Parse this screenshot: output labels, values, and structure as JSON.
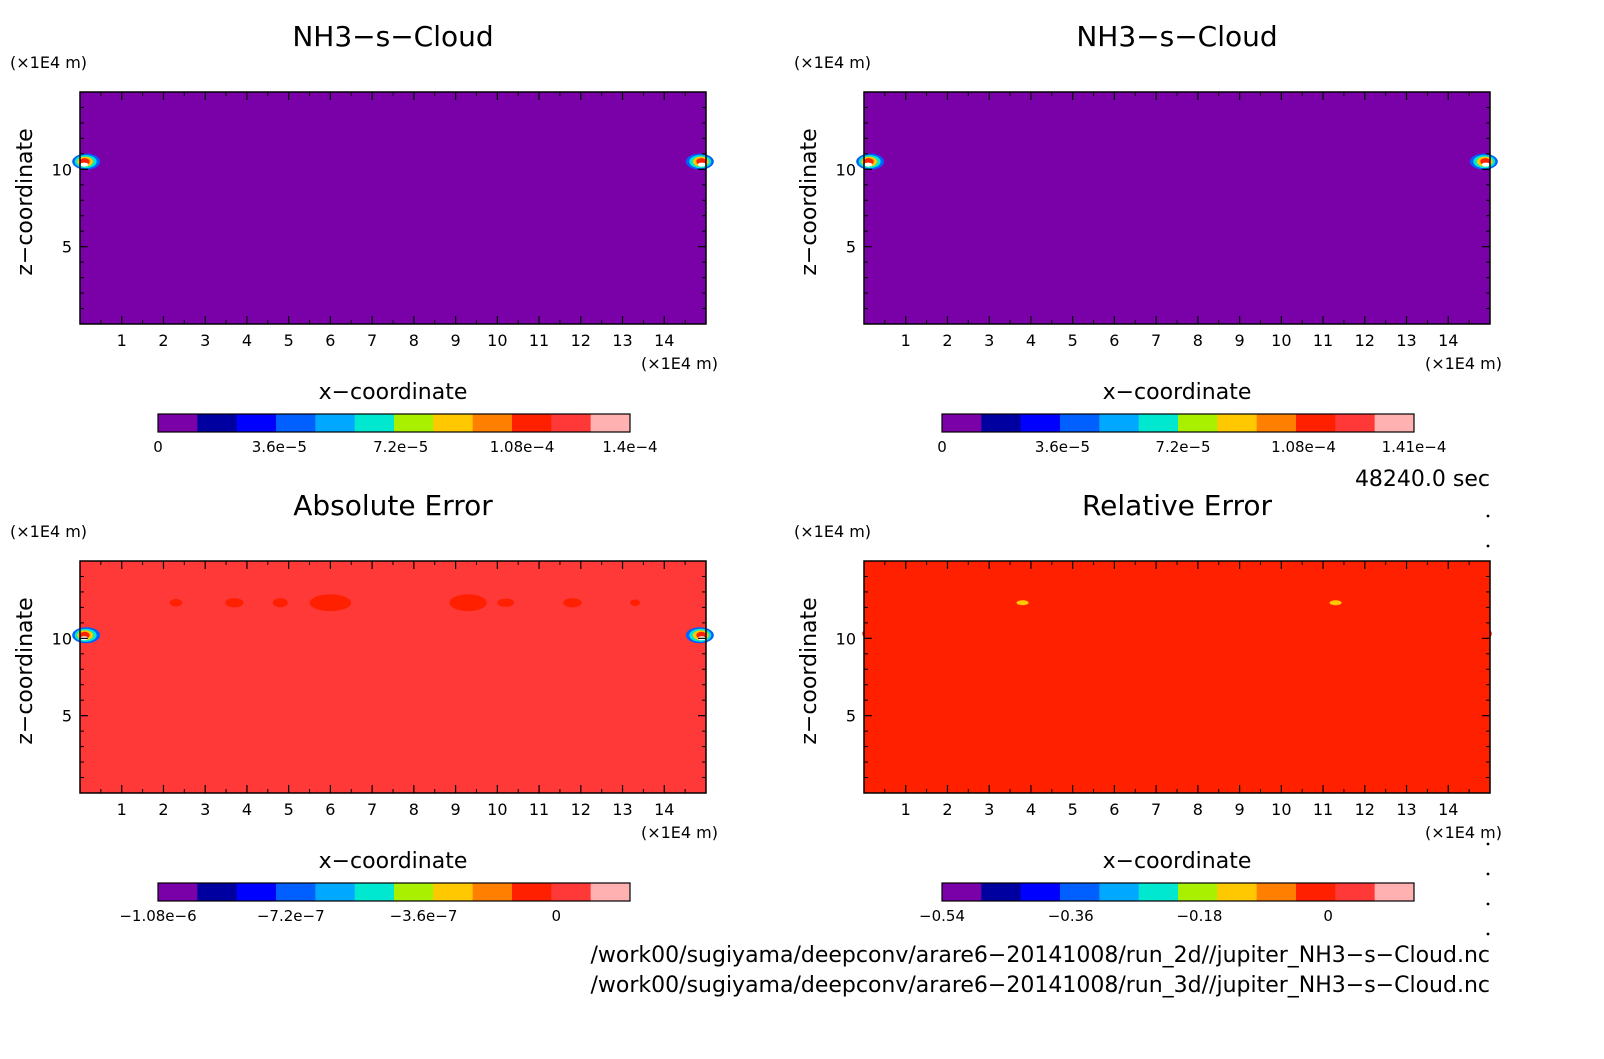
{
  "time_label": "48240.0 sec",
  "files": [
    "/work00/sugiyama/deepconv/arare6-20141008/run_2d//jupiter_NH3-s-Cloud.nc",
    "/work00/sugiyama/deepconv/arare6-20141008/run_3d//jupiter_NH3-s-Cloud.nc"
  ],
  "colors": {
    "palette": [
      "#7a00a8",
      "#0000a0",
      "#0000ff",
      "#0060ff",
      "#00a8ff",
      "#00e8d0",
      "#a8f000",
      "#ffc800",
      "#ff8000",
      "#ff2000",
      "#ff3838",
      "#ffb0b0"
    ]
  },
  "chart_data": [
    {
      "type": "heatmap",
      "title": "NH3-s-Cloud",
      "xlabel": "x-coordinate",
      "ylabel": "z-coordinate",
      "x_unit": "(x1E4 m)",
      "y_unit": "(x1E4 m)",
      "xlim": [
        0,
        15
      ],
      "ylim": [
        0,
        15
      ],
      "xticks": [
        1,
        2,
        3,
        4,
        5,
        6,
        7,
        8,
        9,
        10,
        11,
        12,
        13,
        14
      ],
      "yticks": [
        5,
        10
      ],
      "background_level": 0,
      "colorbar": {
        "min": 0,
        "max": 0.00014,
        "tick_values": [
          0,
          3.6e-05,
          7.2e-05,
          0.000108,
          0.00014
        ],
        "tick_labels": [
          "0",
          "3.6e-5",
          "7.2e-5",
          "1.08e-4",
          "1.4e-4"
        ]
      },
      "features": [
        {
          "kind": "cloud-blob",
          "x": 0.1,
          "z": 10.5
        },
        {
          "kind": "cloud-blob",
          "x": 14.9,
          "z": 10.5
        }
      ]
    },
    {
      "type": "heatmap",
      "title": "NH3-s-Cloud",
      "xlabel": "x-coordinate",
      "ylabel": "z-coordinate",
      "x_unit": "(x1E4 m)",
      "y_unit": "(x1E4 m)",
      "xlim": [
        0,
        15
      ],
      "ylim": [
        0,
        15
      ],
      "xticks": [
        1,
        2,
        3,
        4,
        5,
        6,
        7,
        8,
        9,
        10,
        11,
        12,
        13,
        14
      ],
      "yticks": [
        5,
        10
      ],
      "background_level": 0,
      "colorbar": {
        "min": 0,
        "max": 0.000141,
        "tick_values": [
          0,
          3.6e-05,
          7.2e-05,
          0.000108,
          0.000141
        ],
        "tick_labels": [
          "0",
          "3.6e-5",
          "7.2e-5",
          "1.08e-4",
          "1.41e-4"
        ]
      },
      "features": [
        {
          "kind": "cloud-blob",
          "x": 0.1,
          "z": 10.5
        },
        {
          "kind": "cloud-blob",
          "x": 14.9,
          "z": 10.5
        }
      ]
    },
    {
      "type": "heatmap",
      "title": "Absolute Error",
      "xlabel": "x-coordinate",
      "ylabel": "z-coordinate",
      "x_unit": "(x1E4 m)",
      "y_unit": "(x1E4 m)",
      "xlim": [
        0,
        15
      ],
      "ylim": [
        0,
        15
      ],
      "xticks": [
        1,
        2,
        3,
        4,
        5,
        6,
        7,
        8,
        9,
        10,
        11,
        12,
        13,
        14
      ],
      "yticks": [
        5,
        10
      ],
      "background_level": 0,
      "colorbar": {
        "min": -1.08e-06,
        "max": 2e-07,
        "tick_values": [
          -1.08e-06,
          -7.2e-07,
          -3.6e-07,
          0
        ],
        "tick_labels": [
          "-1.08e-6",
          "-7.2e-7",
          "-3.6e-7",
          "0"
        ]
      },
      "features": [
        {
          "kind": "cloud-blob",
          "x": 0.1,
          "z": 10.2
        },
        {
          "kind": "cloud-blob",
          "x": 14.9,
          "z": 10.2
        }
      ]
    },
    {
      "type": "heatmap",
      "title": "Relative Error",
      "xlabel": "x-coordinate",
      "ylabel": "z-coordinate",
      "x_unit": "(x1E4 m)",
      "y_unit": "(x1E4 m)",
      "xlim": [
        0,
        15
      ],
      "ylim": [
        0,
        15
      ],
      "xticks": [
        1,
        2,
        3,
        4,
        5,
        6,
        7,
        8,
        9,
        10,
        11,
        12,
        13,
        14
      ],
      "yticks": [
        5,
        10
      ],
      "background_level": 0,
      "colorbar": {
        "min": -0.54,
        "max": 0.12,
        "tick_values": [
          -0.54,
          -0.36,
          -0.18,
          0
        ],
        "tick_labels": [
          "-0.54",
          "-0.36",
          "-0.18",
          "0"
        ]
      },
      "features": []
    }
  ]
}
